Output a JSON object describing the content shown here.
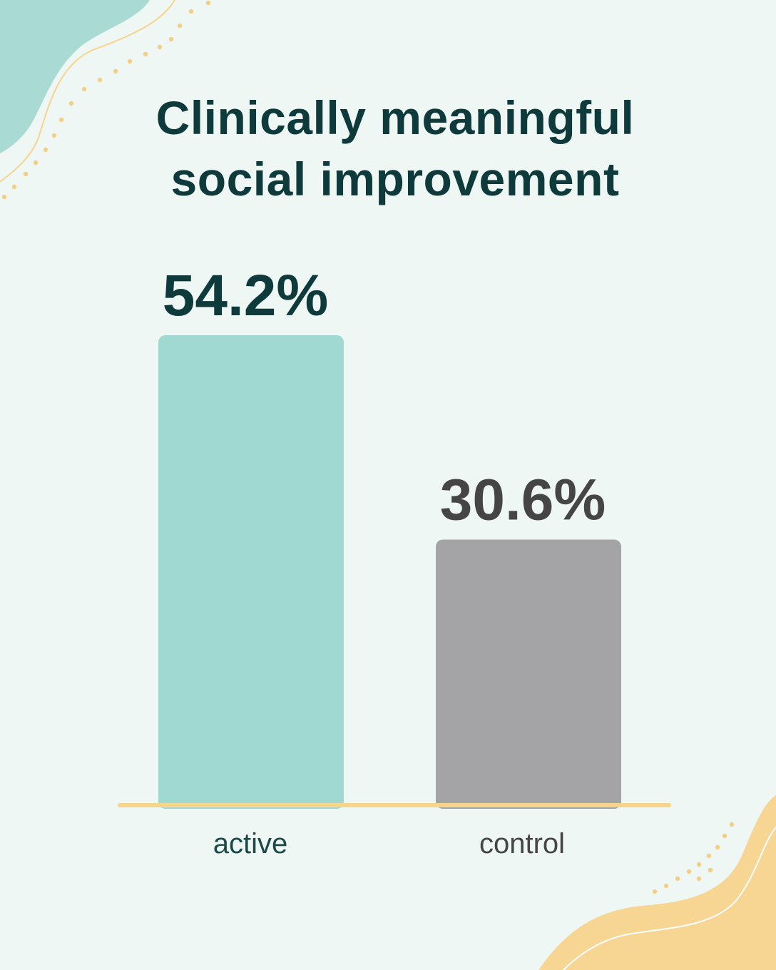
{
  "chart_data": {
    "type": "bar",
    "title_lines": [
      "Clinically meaningful",
      "social improvement"
    ],
    "categories": [
      "active",
      "control"
    ],
    "values": [
      54.2,
      30.6
    ],
    "value_labels": [
      "54.2%",
      "30.6%"
    ],
    "ylim": [
      0,
      100
    ],
    "grid": false,
    "bar_colors": [
      "#9fd9d2",
      "#a4a4a6"
    ],
    "value_label_colors": [
      "#0e3a3c",
      "#454545"
    ],
    "category_label_colors": [
      "#1a4a48",
      "#454545"
    ]
  },
  "theme": {
    "background": "#eff7f4",
    "title_color": "#0e3a3c",
    "baseline_color": "#f5d48c",
    "decor_teal": "#a9dbd4",
    "decor_peach": "#f7d592",
    "dot_color": "#f3cf86"
  }
}
